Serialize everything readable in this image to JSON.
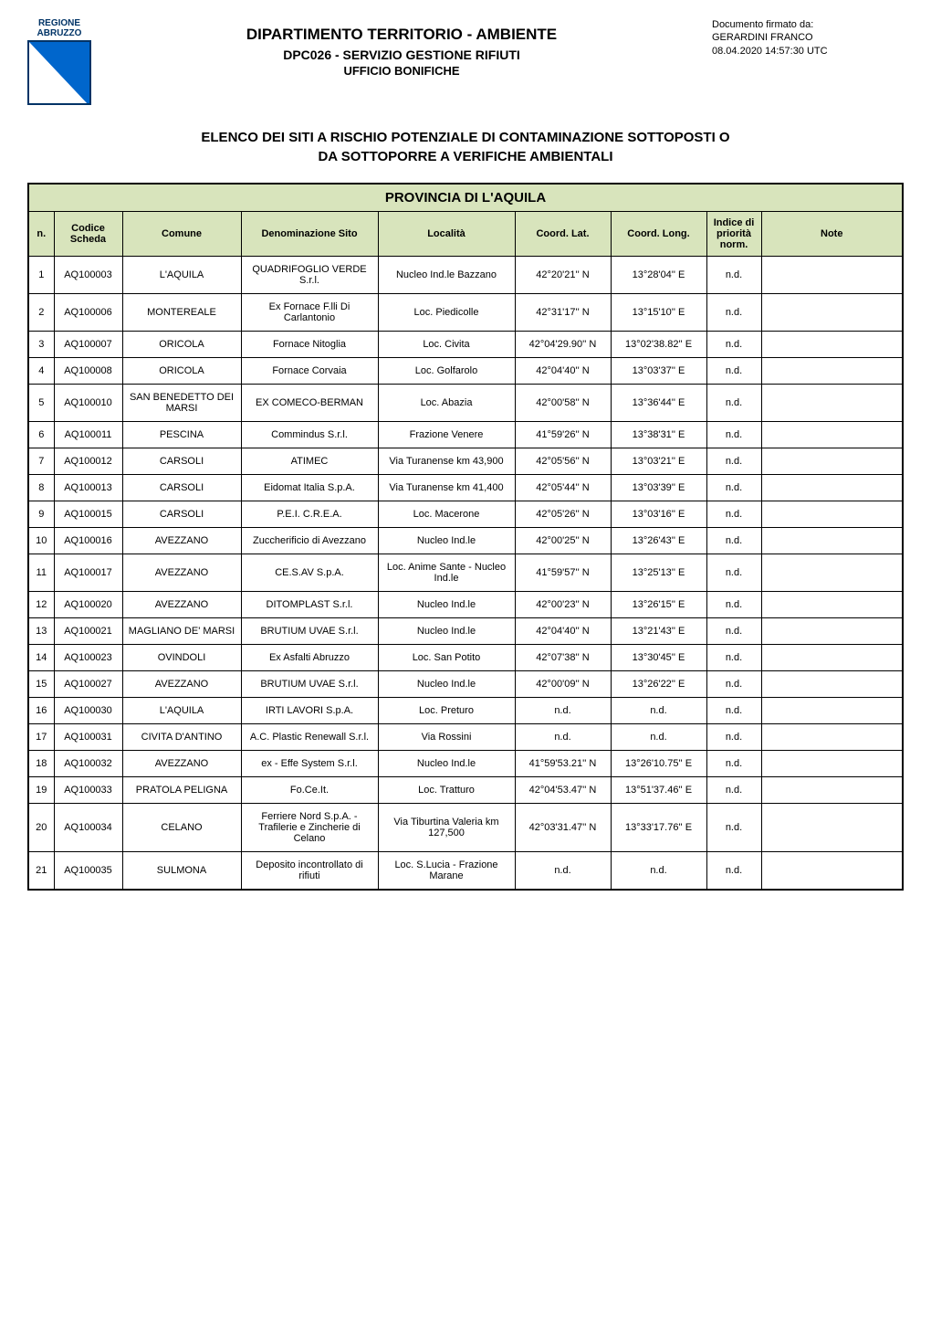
{
  "logo": {
    "line1": "REGIONE",
    "line2": "ABRUZZO"
  },
  "signature": {
    "line1": "Documento firmato da:",
    "line2": "GERARDINI FRANCO",
    "line3": "08.04.2020 14:57:30 UTC"
  },
  "header": {
    "title1": "DIPARTIMENTO TERRITORIO - AMBIENTE",
    "title2": "DPC026 - SERVIZIO GESTIONE RIFIUTI",
    "title3": "UFFICIO BONIFICHE"
  },
  "main_title_line1": "ELENCO DEI SITI A RISCHIO POTENZIALE DI CONTAMINAZIONE SOTTOPOSTI O",
  "main_title_line2": "DA SOTTOPORRE A VERIFICHE AMBIENTALI",
  "province_header": "PROVINCIA DI L'AQUILA",
  "columns": {
    "n": "n.",
    "codice": "Codice Scheda",
    "comune": "Comune",
    "denominazione": "Denominazione Sito",
    "localita": "Località",
    "lat": "Coord. Lat.",
    "long": "Coord. Long.",
    "priorita": "Indice di priorità norm.",
    "note": "Note"
  },
  "rows": [
    {
      "n": "1",
      "cod": "AQ100003",
      "com": "L'AQUILA",
      "den": "QUADRIFOGLIO VERDE S.r.l.",
      "loc": "Nucleo Ind.le Bazzano",
      "lat": "42°20'21'' N",
      "lon": "13°28'04'' E",
      "pri": "n.d.",
      "note": ""
    },
    {
      "n": "2",
      "cod": "AQ100006",
      "com": "MONTEREALE",
      "den": "Ex Fornace F.lli Di Carlantonio",
      "loc": "Loc. Piedicolle",
      "lat": "42°31'17'' N",
      "lon": "13°15'10'' E",
      "pri": "n.d.",
      "note": ""
    },
    {
      "n": "3",
      "cod": "AQ100007",
      "com": "ORICOLA",
      "den": "Fornace Nitoglia",
      "loc": "Loc. Civita",
      "lat": "42°04'29.90'' N",
      "lon": "13°02'38.82'' E",
      "pri": "n.d.",
      "note": ""
    },
    {
      "n": "4",
      "cod": "AQ100008",
      "com": "ORICOLA",
      "den": "Fornace Corvaia",
      "loc": "Loc. Golfarolo",
      "lat": "42°04'40'' N",
      "lon": "13°03'37'' E",
      "pri": "n.d.",
      "note": ""
    },
    {
      "n": "5",
      "cod": "AQ100010",
      "com": "SAN BENEDETTO DEI MARSI",
      "den": "EX COMECO-BERMAN",
      "loc": "Loc. Abazia",
      "lat": "42°00'58'' N",
      "lon": "13°36'44'' E",
      "pri": "n.d.",
      "note": ""
    },
    {
      "n": "6",
      "cod": "AQ100011",
      "com": "PESCINA",
      "den": "Commindus S.r.l.",
      "loc": "Frazione Venere",
      "lat": "41°59'26'' N",
      "lon": "13°38'31'' E",
      "pri": "n.d.",
      "note": ""
    },
    {
      "n": "7",
      "cod": "AQ100012",
      "com": "CARSOLI",
      "den": "ATIMEC",
      "loc": "Via Turanense km 43,900",
      "lat": "42°05'56'' N",
      "lon": "13°03'21'' E",
      "pri": "n.d.",
      "note": ""
    },
    {
      "n": "8",
      "cod": "AQ100013",
      "com": "CARSOLI",
      "den": "Eidomat Italia S.p.A.",
      "loc": "Via Turanense km 41,400",
      "lat": "42°05'44'' N",
      "lon": "13°03'39'' E",
      "pri": "n.d.",
      "note": ""
    },
    {
      "n": "9",
      "cod": "AQ100015",
      "com": "CARSOLI",
      "den": "P.E.I. C.R.E.A.",
      "loc": "Loc. Macerone",
      "lat": "42°05'26'' N",
      "lon": "13°03'16'' E",
      "pri": "n.d.",
      "note": ""
    },
    {
      "n": "10",
      "cod": "AQ100016",
      "com": "AVEZZANO",
      "den": "Zuccherificio di Avezzano",
      "loc": "Nucleo Ind.le",
      "lat": "42°00'25'' N",
      "lon": "13°26'43'' E",
      "pri": "n.d.",
      "note": ""
    },
    {
      "n": "11",
      "cod": "AQ100017",
      "com": "AVEZZANO",
      "den": "CE.S.AV S.p.A.",
      "loc": "Loc. Anime Sante - Nucleo Ind.le",
      "lat": "41°59'57'' N",
      "lon": "13°25'13'' E",
      "pri": "n.d.",
      "note": ""
    },
    {
      "n": "12",
      "cod": "AQ100020",
      "com": "AVEZZANO",
      "den": "DITOMPLAST S.r.l.",
      "loc": "Nucleo Ind.le",
      "lat": "42°00'23'' N",
      "lon": "13°26'15'' E",
      "pri": "n.d.",
      "note": ""
    },
    {
      "n": "13",
      "cod": "AQ100021",
      "com": "MAGLIANO DE' MARSI",
      "den": "BRUTIUM UVAE S.r.l.",
      "loc": "Nucleo Ind.le",
      "lat": "42°04'40'' N",
      "lon": "13°21'43'' E",
      "pri": "n.d.",
      "note": ""
    },
    {
      "n": "14",
      "cod": "AQ100023",
      "com": "OVINDOLI",
      "den": "Ex Asfalti Abruzzo",
      "loc": "Loc. San Potito",
      "lat": "42°07'38'' N",
      "lon": "13°30'45'' E",
      "pri": "n.d.",
      "note": ""
    },
    {
      "n": "15",
      "cod": "AQ100027",
      "com": "AVEZZANO",
      "den": "BRUTIUM UVAE S.r.l.",
      "loc": "Nucleo Ind.le",
      "lat": "42°00'09'' N",
      "lon": "13°26'22'' E",
      "pri": "n.d.",
      "note": ""
    },
    {
      "n": "16",
      "cod": "AQ100030",
      "com": "L'AQUILA",
      "den": "IRTI LAVORI S.p.A.",
      "loc": "Loc. Preturo",
      "lat": "n.d.",
      "lon": "n.d.",
      "pri": "n.d.",
      "note": ""
    },
    {
      "n": "17",
      "cod": "AQ100031",
      "com": "CIVITA D'ANTINO",
      "den": "A.C. Plastic Renewall S.r.l.",
      "loc": "Via Rossini",
      "lat": "n.d.",
      "lon": "n.d.",
      "pri": "n.d.",
      "note": ""
    },
    {
      "n": "18",
      "cod": "AQ100032",
      "com": "AVEZZANO",
      "den": "ex - Effe System S.r.l.",
      "loc": "Nucleo Ind.le",
      "lat": "41°59'53.21'' N",
      "lon": "13°26'10.75'' E",
      "pri": "n.d.",
      "note": ""
    },
    {
      "n": "19",
      "cod": "AQ100033",
      "com": "PRATOLA PELIGNA",
      "den": "Fo.Ce.It.",
      "loc": "Loc. Tratturo",
      "lat": "42°04'53.47'' N",
      "lon": "13°51'37.46'' E",
      "pri": "n.d.",
      "note": ""
    },
    {
      "n": "20",
      "cod": "AQ100034",
      "com": "CELANO",
      "den": "Ferriere Nord S.p.A. - Trafilerie e Zincherie di Celano",
      "loc": "Via Tiburtina Valeria km 127,500",
      "lat": "42°03'31.47'' N",
      "lon": "13°33'17.76'' E",
      "pri": "n.d.",
      "note": ""
    },
    {
      "n": "21",
      "cod": "AQ100035",
      "com": "SULMONA",
      "den": "Deposito incontrollato di rifiuti",
      "loc": "Loc. S.Lucia - Frazione Marane",
      "lat": "n.d.",
      "lon": "n.d.",
      "pri": "n.d.",
      "note": ""
    }
  ],
  "colors": {
    "header_bg": "#d8e4bc",
    "border": "#000000",
    "logo_blue": "#0066cc",
    "logo_dark": "#003366"
  }
}
